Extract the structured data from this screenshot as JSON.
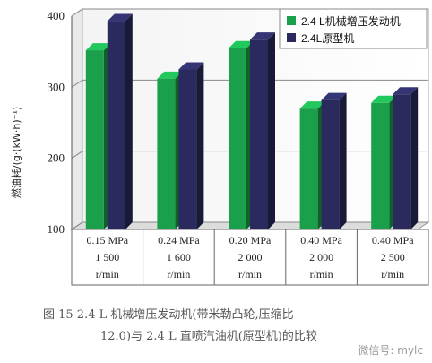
{
  "chart_data": {
    "type": "bar",
    "ylabel": "燃油耗/(g·(kW·h)⁻¹)",
    "ylim": [
      100,
      400
    ],
    "yticks": [
      100,
      200,
      300,
      400
    ],
    "grid": true,
    "legend_position": "top-right",
    "categories": [
      [
        "0.15 MPa",
        "1 500",
        "r/min"
      ],
      [
        "0.24 MPa",
        "1 600",
        "r/min"
      ],
      [
        "0.20 MPa",
        "2 000",
        "r/min"
      ],
      [
        "0.40 MPa",
        "2 000",
        "r/min"
      ],
      [
        "0.40 MPa",
        "2 500",
        "r/min"
      ]
    ],
    "series": [
      {
        "name": "2.4 L机械增压发动机",
        "color": "#1aa04a",
        "values": [
          352,
          312,
          355,
          270,
          278
        ]
      },
      {
        "name": "2.4L原型机",
        "color": "#2a2a5e",
        "values": [
          393,
          325,
          367,
          282,
          290
        ]
      }
    ]
  },
  "caption": {
    "line1": "图 15   2.4 L 机械增压发动机(带米勒凸轮,压缩比",
    "line2": "12.0)与 2.4 L 直喷汽油机(原型机)的比较"
  },
  "watermark": "微信号: mylc"
}
